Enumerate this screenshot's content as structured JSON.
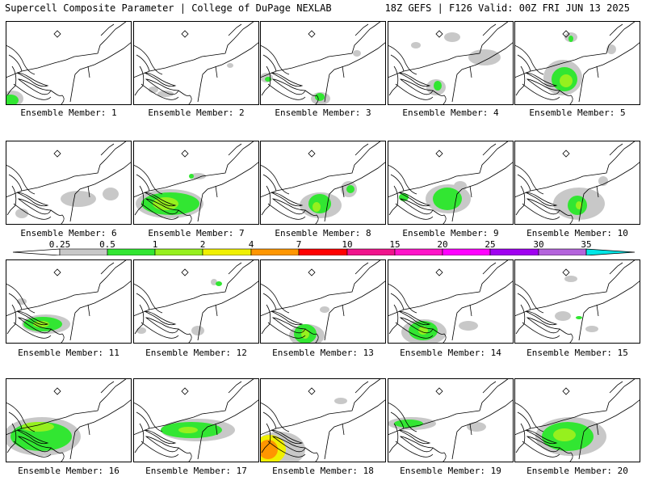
{
  "header": {
    "title": "Supercell Composite Parameter | College of DuPage NEXLAB",
    "run_info": "18Z GEFS | F126 Valid: 00Z FRI JUN 13 2025"
  },
  "panels": [
    {
      "label": "Ensemble Member: 1"
    },
    {
      "label": "Ensemble Member: 2"
    },
    {
      "label": "Ensemble Member: 3"
    },
    {
      "label": "Ensemble Member: 4"
    },
    {
      "label": "Ensemble Member: 5"
    },
    {
      "label": "Ensemble Member: 6"
    },
    {
      "label": "Ensemble Member: 7"
    },
    {
      "label": "Ensemble Member: 8"
    },
    {
      "label": "Ensemble Member: 9"
    },
    {
      "label": "Ensemble Member: 10"
    },
    {
      "label": "Ensemble Member: 11"
    },
    {
      "label": "Ensemble Member: 12"
    },
    {
      "label": "Ensemble Member: 13"
    },
    {
      "label": "Ensemble Member: 14"
    },
    {
      "label": "Ensemble Member: 15"
    },
    {
      "label": "Ensemble Member: 16"
    },
    {
      "label": "Ensemble Member: 17"
    },
    {
      "label": "Ensemble Member: 18"
    },
    {
      "label": "Ensemble Member: 19"
    },
    {
      "label": "Ensemble Member: 20"
    }
  ],
  "legend": {
    "levels": [
      "0.25",
      "0.5",
      "1",
      "2",
      "4",
      "7",
      "10",
      "15",
      "20",
      "25",
      "30",
      "35"
    ],
    "colors": [
      "#c8c8c8",
      "#32e632",
      "#96f01e",
      "#f0f000",
      "#ff9600",
      "#ff0000",
      "#f0148c",
      "#ff14c8",
      "#ff00ff",
      "#a000f0",
      "#b464dc",
      "#00e6e6"
    ]
  }
}
